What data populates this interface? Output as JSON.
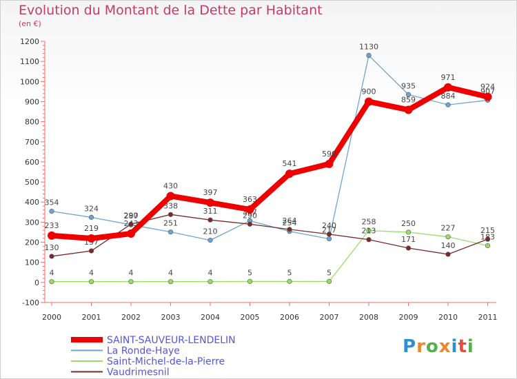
{
  "title": "Evolution du Montant de la Dette par Habitant",
  "unit_label": "(en €)",
  "logo_text": "Proxiti",
  "chart_data": {
    "type": "line",
    "categories": [
      "2000",
      "2001",
      "2002",
      "2003",
      "2004",
      "2005",
      "2006",
      "2007",
      "2008",
      "2009",
      "2010",
      "2011"
    ],
    "ylim": [
      -100,
      1200
    ],
    "yticks": [
      -100,
      0,
      100,
      200,
      300,
      400,
      500,
      600,
      700,
      800,
      900,
      1000,
      1100,
      1200
    ],
    "grid": false,
    "legend": "bottom-left",
    "series": [
      {
        "name": "SAINT-SAUVEUR-LENDELIN",
        "color": "#ee0000",
        "values": [
          233,
          219,
          243,
          430,
          397,
          363,
          541,
          590,
          900,
          859,
          971,
          924
        ]
      },
      {
        "name": "La Ronde-Haye",
        "color": "#6da4cf",
        "values": [
          354,
          324,
          287,
          251,
          210,
          307,
          254,
          217,
          1130,
          935,
          884,
          907
        ]
      },
      {
        "name": "Saint-Michel-de-la-Pierre",
        "color": "#99dd66",
        "values": [
          4,
          4,
          4,
          4,
          4,
          5,
          5,
          5,
          258,
          250,
          227,
          183
        ]
      },
      {
        "name": "Vaudrimesnil",
        "color": "#7a2a2a",
        "values": [
          130,
          157,
          290,
          338,
          311,
          290,
          264,
          240,
          213,
          171,
          140,
          215
        ]
      }
    ]
  }
}
